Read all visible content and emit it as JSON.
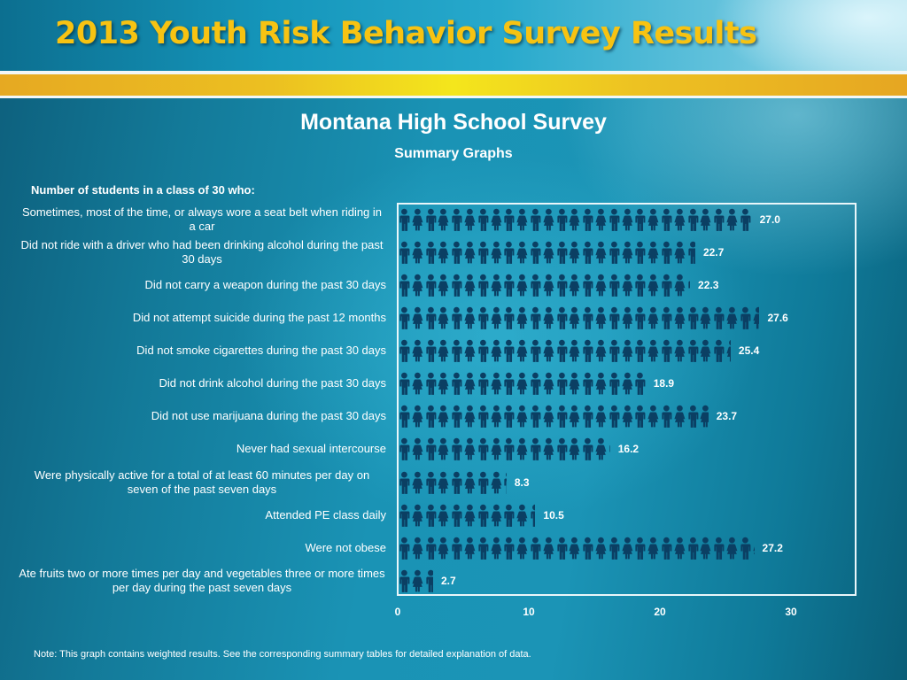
{
  "header": {
    "title": "2013 Youth Risk Behavior Survey Results"
  },
  "survey": {
    "title": "Montana High School Survey",
    "subtitle": "Summary Graphs",
    "chart_heading": "Number of students in a class of 30 who:"
  },
  "note": "Note: This graph contains weighted results. See the corresponding summary tables for detailed explanation of data.",
  "icons": {
    "male": "male-person-icon",
    "female": "female-person-icon",
    "color": "#0b3f63"
  },
  "colors": {
    "title_gold": "#f7c312",
    "frame": "#e9f6fa",
    "text": "#ffffff",
    "icon": "#0b3f63"
  },
  "axis": {
    "ticks": [
      "0",
      "10",
      "20",
      "30"
    ]
  },
  "rows": [
    {
      "label": "Sometimes, most of the time, or always wore a seat belt when riding in a car",
      "value": "27.0"
    },
    {
      "label": "Did not ride with a driver who had been drinking alcohol during the past 30 days",
      "value": "22.7"
    },
    {
      "label": "Did not carry a weapon during the past 30 days",
      "value": "22.3"
    },
    {
      "label": "Did not attempt suicide during the past 12 months",
      "value": "27.6"
    },
    {
      "label": "Did not smoke cigarettes during the past 30 days",
      "value": "25.4"
    },
    {
      "label": "Did not drink alcohol during the past 30 days",
      "value": "18.9"
    },
    {
      "label": "Did not use marijuana during the past 30 days",
      "value": "23.7"
    },
    {
      "label": "Never had sexual intercourse",
      "value": "16.2"
    },
    {
      "label": "Were physically active for a total of at least 60 minutes per day on seven of the past seven days",
      "value": "8.3"
    },
    {
      "label": "Attended PE class daily",
      "value": "10.5"
    },
    {
      "label": "Were not obese",
      "value": "27.2"
    },
    {
      "label": "Ate fruits two or more times per day and vegetables three or more times per day during the past seven days",
      "value": "2.7"
    }
  ],
  "chart_data": {
    "type": "bar",
    "orientation": "horizontal",
    "style": "pictograph",
    "title": "Montana High School Survey",
    "subtitle": "Summary Graphs",
    "ylabel": "Number of students in a class of 30 who:",
    "xlabel": "",
    "xlim": [
      0,
      30
    ],
    "x_ticks": [
      0,
      10,
      20,
      30
    ],
    "grid": false,
    "legend": null,
    "categories": [
      "Sometimes, most of the time, or always wore a seat belt when riding in a car",
      "Did not ride with a driver who had been drinking alcohol during the past 30 days",
      "Did not carry a weapon during the past 30 days",
      "Did not attempt suicide during the past 12 months",
      "Did not smoke cigarettes during the past 30 days",
      "Did not drink alcohol during the past 30 days",
      "Did not use marijuana during the past 30 days",
      "Never had sexual intercourse",
      "Were physically active for a total of at least 60 minutes per day on seven of the past seven days",
      "Attended PE class daily",
      "Were not obese",
      "Ate fruits two or more times per day and vegetables three or more times per day during the past seven days"
    ],
    "values": [
      27.0,
      22.7,
      22.3,
      27.6,
      25.4,
      18.9,
      23.7,
      16.2,
      8.3,
      10.5,
      27.2,
      2.7
    ],
    "annotations": "Note: This graph contains weighted results. See the corresponding summary tables for detailed explanation of data."
  }
}
